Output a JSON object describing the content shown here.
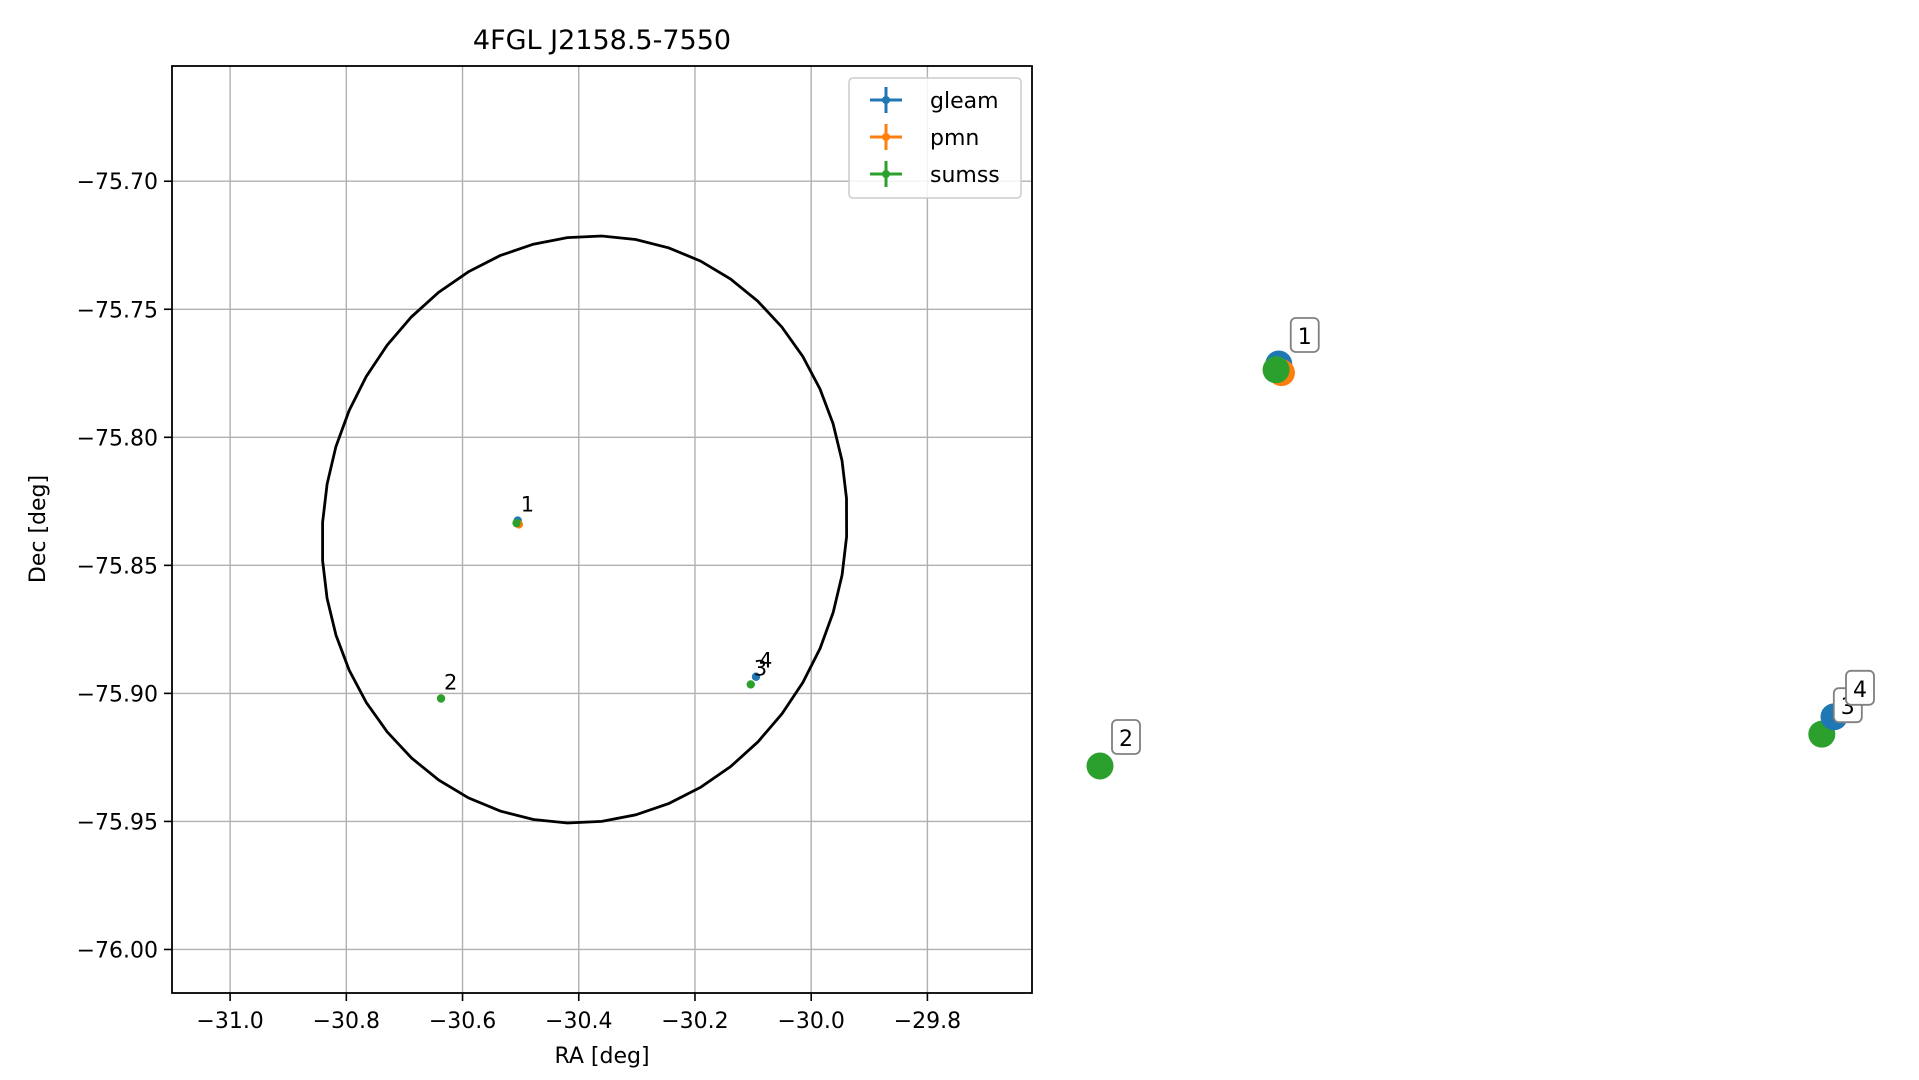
{
  "chart_data": {
    "type": "scatter",
    "title": "4FGL J2158.5-7550",
    "xlabel": "RA [deg]",
    "ylabel": "Dec [deg]",
    "xlim": [
      -31.1,
      -29.62
    ],
    "ylim": [
      -76.017,
      -75.655
    ],
    "xticks": [
      -31.0,
      -30.8,
      -30.6,
      -30.4,
      -30.2,
      -30.0,
      -29.8
    ],
    "xtick_labels": [
      "−31.0",
      "−30.8",
      "−30.6",
      "−30.4",
      "−30.2",
      "−30.0",
      "−29.8"
    ],
    "yticks": [
      -75.7,
      -75.75,
      -75.8,
      -75.85,
      -75.9,
      -75.95,
      -76.0
    ],
    "ytick_labels": [
      "−75.70",
      "−75.75",
      "−75.80",
      "−75.85",
      "−75.90",
      "−75.95",
      "−76.00"
    ],
    "grid": true,
    "legend_position": "top-right",
    "colors": {
      "gleam": "#1f77b4",
      "pmn": "#ff7f0e",
      "sumss": "#2ca02c",
      "ellipse": "#000000"
    },
    "series": [
      {
        "name": "gleam",
        "points": [
          {
            "label": "1",
            "ra": -30.505,
            "dec": -75.8325
          },
          {
            "label": "4",
            "ra": -30.095,
            "dec": -75.8935
          }
        ]
      },
      {
        "name": "pmn",
        "points": [
          {
            "label": "1",
            "ra": -30.503,
            "dec": -75.834
          }
        ]
      },
      {
        "name": "sumss",
        "points": [
          {
            "label": "1",
            "ra": -30.507,
            "dec": -75.8335
          },
          {
            "label": "2",
            "ra": -30.637,
            "dec": -75.902
          },
          {
            "label": "3",
            "ra": -30.104,
            "dec": -75.8965
          }
        ]
      }
    ],
    "ellipse": {
      "center_ra": -30.39,
      "center_dec": -75.836,
      "semi_ra": 0.45,
      "semi_dec": 0.115,
      "tilt_deg": 10
    },
    "zoom_panel": {
      "points": [
        {
          "label": "1",
          "series": "gleam",
          "ra": -30.505,
          "dec": -75.8325
        },
        {
          "label": "1",
          "series": "pmn",
          "ra": -30.503,
          "dec": -75.834
        },
        {
          "label": "1",
          "series": "sumss",
          "ra": -30.507,
          "dec": -75.8335
        },
        {
          "label": "2",
          "series": "sumss",
          "ra": -30.637,
          "dec": -75.902
        },
        {
          "label": "3",
          "series": "sumss",
          "ra": -30.104,
          "dec": -75.8965
        },
        {
          "label": "4",
          "series": "gleam",
          "ra": -30.095,
          "dec": -75.8935
        }
      ],
      "callout_labels": [
        {
          "text": "1",
          "series": "gleam"
        },
        {
          "text": "2",
          "series": "sumss"
        },
        {
          "text": "3",
          "series": "sumss"
        },
        {
          "text": "4",
          "series": "gleam"
        }
      ]
    }
  }
}
